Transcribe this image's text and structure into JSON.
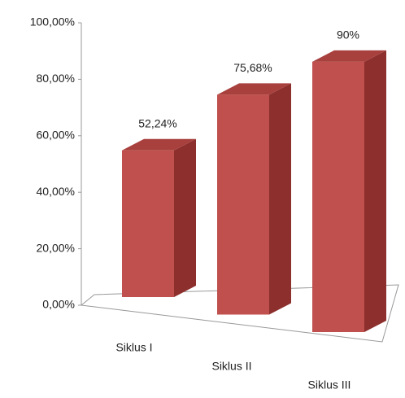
{
  "chart_data": {
    "type": "bar3d",
    "categories": [
      "Siklus I",
      "Siklus II",
      "Siklus III"
    ],
    "values": [
      52.24,
      75.68,
      90
    ],
    "value_labels": [
      "52,24%",
      "75,68%",
      "90%"
    ],
    "color": "#c0504d",
    "ylim": [
      0,
      100
    ],
    "yticks": [
      {
        "value": 0,
        "label": "0,00%"
      },
      {
        "value": 20,
        "label": "20,00%"
      },
      {
        "value": 40,
        "label": "40,00%"
      },
      {
        "value": 60,
        "label": "60,00%"
      },
      {
        "value": 80,
        "label": "80,00%"
      },
      {
        "value": 100,
        "label": "100,00%"
      }
    ]
  }
}
